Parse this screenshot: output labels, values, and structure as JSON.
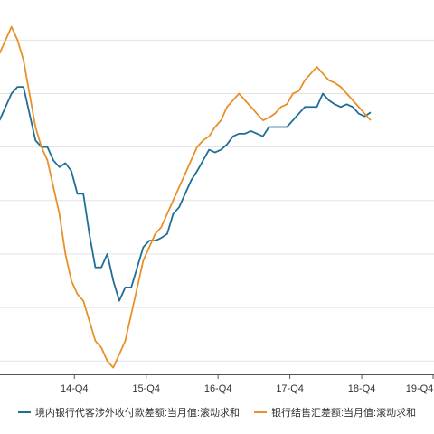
{
  "chart_data": {
    "type": "line",
    "title": "",
    "xlabel": "",
    "ylabel": "",
    "x_ticks": [
      "14-Q4",
      "15-Q4",
      "16-Q4",
      "17-Q4",
      "18-Q4",
      "19-Q4"
    ],
    "x_start_month": 0,
    "x_end_month": 72.5,
    "tick_months": [
      12.5,
      24.5,
      36.5,
      48.5,
      60.5,
      72.5
    ],
    "y_range": [
      -230,
      50
    ],
    "y_gridlines": [
      -220,
      -180,
      -140,
      -100,
      -60,
      -20,
      20
    ],
    "grid": true,
    "legend_position": "bottom",
    "series": [
      {
        "name": "境内银行代客涉外收付款差额:当月值:滚动求和",
        "color": "#1f6e96",
        "values": [
          -40,
          -30,
          -20,
          -15,
          -15,
          -35,
          -55,
          -60,
          -60,
          -70,
          -75,
          -72,
          -78,
          -95,
          -95,
          -125,
          -150,
          -150,
          -140,
          -160,
          -175,
          -165,
          -165,
          -150,
          -135,
          -130,
          -130,
          -128,
          -125,
          -110,
          -105,
          -95,
          -85,
          -78,
          -70,
          -62,
          -64,
          -62,
          -58,
          -52,
          -50,
          -50,
          -48,
          -50,
          -52,
          -45,
          -45,
          -45,
          -45,
          -40,
          -35,
          -30,
          -30,
          -30,
          -20,
          -25,
          -28,
          -30,
          -28,
          -30,
          -35,
          -37,
          -34
        ]
      },
      {
        "name": "银行结售汇差额:当月值:滚动求和",
        "color": "#e8902a",
        "values": [
          10,
          20,
          30,
          20,
          5,
          -20,
          -45,
          -60,
          -70,
          -90,
          -110,
          -140,
          -160,
          -170,
          -175,
          -190,
          -205,
          -210,
          -220,
          -225,
          -215,
          -205,
          -185,
          -165,
          -145,
          -135,
          -125,
          -120,
          -110,
          -100,
          -90,
          -80,
          -70,
          -60,
          -55,
          -52,
          -45,
          -40,
          -30,
          -25,
          -20,
          -25,
          -30,
          -35,
          -40,
          -38,
          -35,
          -30,
          -28,
          -20,
          -18,
          -10,
          -5,
          0,
          -5,
          -10,
          -12,
          -15,
          -20,
          -25,
          -30,
          -35,
          -40
        ]
      }
    ]
  }
}
